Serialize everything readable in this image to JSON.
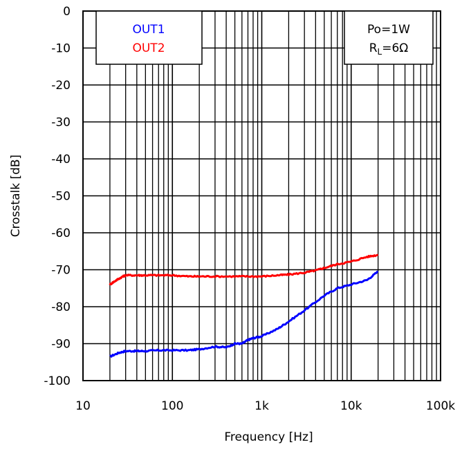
{
  "chart_data": {
    "type": "line",
    "xlabel": "Frequency [Hz]",
    "ylabel": "Crosstalk [dB]",
    "xscale": "log",
    "xlim": [
      10,
      100000
    ],
    "ylim": [
      -100,
      0
    ],
    "grid": true,
    "x_tick_values": [
      10,
      100,
      1000,
      10000,
      100000
    ],
    "x_tick_labels": [
      "10",
      "100",
      "1k",
      "10k",
      "100k"
    ],
    "y_tick_values": [
      0,
      -10,
      -20,
      -30,
      -40,
      -50,
      -60,
      -70,
      -80,
      -90,
      -100
    ],
    "y_tick_labels": [
      "0",
      "-10",
      "-20",
      "-30",
      "-40",
      "-50",
      "-60",
      "-70",
      "-80",
      "-90",
      "-100"
    ],
    "legend": {
      "placement": "top-left",
      "entries": [
        {
          "label": "OUT1",
          "color": "#0000ff"
        },
        {
          "label": "OUT2",
          "color": "#ff0000"
        }
      ]
    },
    "conditions_box": {
      "placement": "top-right",
      "line1": "Po=1W",
      "line2_prefix": "R",
      "line2_sub": "L",
      "line2_suffix": "=6Ω"
    },
    "series": [
      {
        "name": "OUT1",
        "color": "#0000ff",
        "x": [
          20,
          25,
          30,
          40,
          50,
          70,
          100,
          150,
          200,
          300,
          400,
          500,
          600,
          700,
          800,
          1000,
          1500,
          2000,
          3000,
          5000,
          7000,
          10000,
          15000,
          20000
        ],
        "y": [
          -93.5,
          -92.5,
          -92,
          -92,
          -92,
          -91.8,
          -91.8,
          -91.8,
          -91.5,
          -90.8,
          -91,
          -90,
          -90,
          -89,
          -88.5,
          -88,
          -86,
          -84,
          -81,
          -77,
          -75,
          -74,
          -72.8,
          -70.5
        ]
      },
      {
        "name": "OUT2",
        "color": "#ff0000",
        "x": [
          20,
          23,
          27,
          30,
          40,
          50,
          70,
          100,
          150,
          200,
          300,
          500,
          700,
          1000,
          1500,
          2000,
          3000,
          4000,
          5000,
          7000,
          10000,
          15000,
          20000
        ],
        "y": [
          -74,
          -73,
          -72,
          -71.5,
          -71.5,
          -71.5,
          -71.5,
          -71.5,
          -71.8,
          -71.8,
          -71.8,
          -71.8,
          -71.8,
          -71.8,
          -71.5,
          -71.3,
          -70.8,
          -70.2,
          -69.5,
          -68.5,
          -67.8,
          -66.5,
          -66
        ]
      }
    ]
  }
}
